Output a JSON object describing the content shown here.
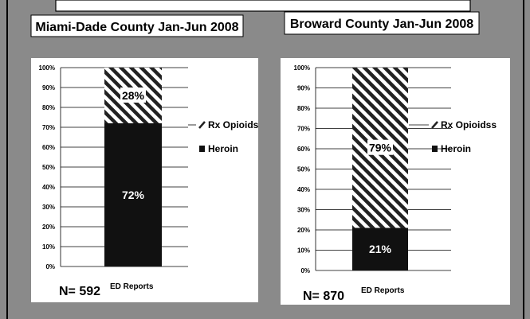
{
  "colors": {
    "background": "#8a8a8a",
    "panel": "#ffffff",
    "heroin": "#111111",
    "rx_opioids_hatch": "#222222"
  },
  "chart_data": [
    {
      "type": "bar",
      "stacked": true,
      "normalized": true,
      "title": "Miami-Dade County Jan-Jun 2008",
      "categories": [
        "ED Reports"
      ],
      "series": [
        {
          "name": "Heroin",
          "values": [
            72
          ],
          "label": "72%"
        },
        {
          "name": "Rx Opioids",
          "values": [
            28
          ],
          "label": "28%"
        }
      ],
      "ylim": [
        0,
        100
      ],
      "yticks": [
        "0%",
        "10%",
        "20%",
        "30%",
        "40%",
        "50%",
        "60%",
        "70%",
        "80%",
        "90%",
        "100%"
      ],
      "grid": true,
      "legend": "right",
      "legend_entries": [
        "Rx Opioids",
        "Heroin"
      ],
      "n_label": "N= 592",
      "xlabel": "ED Reports"
    },
    {
      "type": "bar",
      "stacked": true,
      "normalized": true,
      "title": "Broward County Jan-Jun 2008",
      "categories": [
        "ED Reports"
      ],
      "series": [
        {
          "name": "Heroin",
          "values": [
            21
          ],
          "label": "21%"
        },
        {
          "name": "Rx Opioidss",
          "values": [
            79
          ],
          "label": "79%"
        }
      ],
      "ylim": [
        0,
        100
      ],
      "yticks": [
        "0%",
        "10%",
        "20%",
        "30%",
        "40%",
        "50%",
        "60%",
        "70%",
        "80%",
        "90%",
        "100%"
      ],
      "grid": true,
      "legend": "right",
      "legend_entries": [
        "Rx Opioidss",
        "Heroin"
      ],
      "n_label": "N= 870",
      "xlabel": "ED Reports"
    }
  ]
}
